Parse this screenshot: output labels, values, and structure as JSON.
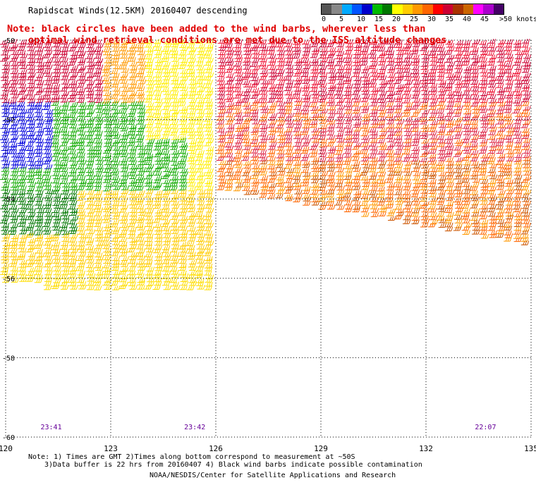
{
  "header": {
    "title": "Rapidscat Winds(12.5KM) 20160407 descending",
    "note_line1": "Note: black circles have been added to the wind barbs, wherever less than",
    "note_line2": "optimal wind retrieval conditions are met due to the ISS altitude changes."
  },
  "legend": {
    "colors": [
      "#555555",
      "#888888",
      "#00aaff",
      "#0055ff",
      "#0000cc",
      "#00bb00",
      "#007700",
      "#ffff00",
      "#ffcc00",
      "#ff9900",
      "#ff6600",
      "#ff0000",
      "#cc0033",
      "#aa3300",
      "#cc6600",
      "#ff00ff",
      "#aa00cc",
      "#440066"
    ],
    "labels": [
      "0",
      "5",
      "10",
      "15",
      "20",
      "25",
      "30",
      "35",
      "40",
      "45"
    ],
    "unit": ">50 knots"
  },
  "map": {
    "lon_ticks": [
      "120",
      "123",
      "126",
      "129",
      "132",
      "135"
    ],
    "lat_ticks": [
      "-50",
      "-52",
      "-54",
      "-56",
      "-58",
      "-60"
    ],
    "lon_range": [
      120,
      135
    ],
    "lat_range": [
      -50,
      -60
    ],
    "grid": "dotted",
    "times": [
      {
        "label": "23:41",
        "lon": 121.3
      },
      {
        "label": "23:42",
        "lon": 125.4
      },
      {
        "label": "22:07",
        "lon": 133.7
      }
    ]
  },
  "footer": {
    "line1": "Note: 1) Times are GMT 2)Times along bottom correspond to measurement at ~50S",
    "line2": "3)Data buffer is 22 hrs from 20160407 4) Black wind barbs indicate possible contamination",
    "line3": "NOAA/NESDIS/Center for Satellite Applications and Research"
  }
}
